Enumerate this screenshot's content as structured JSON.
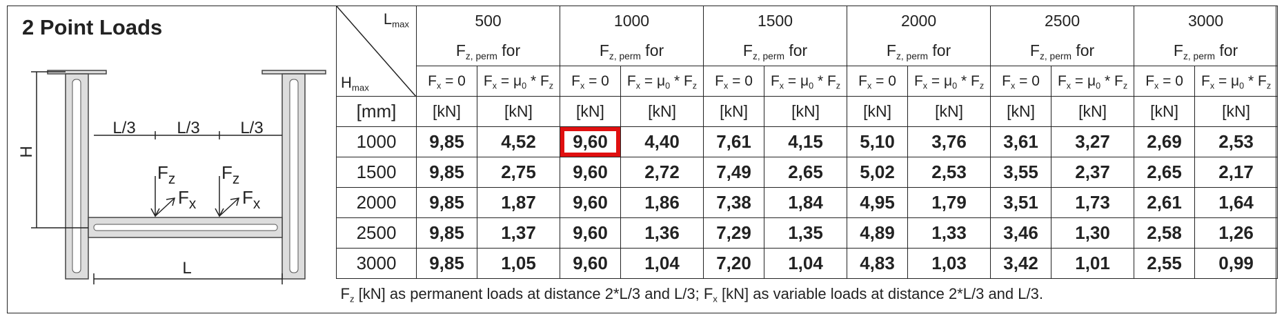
{
  "title": "2 Point Loads",
  "diagram": {
    "thirds": [
      "L/3",
      "L/3",
      "L/3"
    ],
    "height": "H",
    "length": "L",
    "loads": [
      {
        "vertical": [
          "F",
          "z"
        ],
        "horizontal": [
          "F",
          "x"
        ]
      },
      {
        "vertical": [
          "F",
          "z"
        ],
        "horizontal": [
          "F",
          "x"
        ]
      }
    ]
  },
  "table": {
    "corner_top": [
      "L",
      "max"
    ],
    "corner_bottom": [
      "H",
      "max"
    ],
    "unit_label": "[mm]",
    "groups": [
      {
        "length": "500",
        "caption": [
          "F",
          "z, perm",
          " for"
        ],
        "columns": [
          [
            "F",
            "x",
            " = 0"
          ],
          [
            "F",
            "x",
            " = μ",
            "0",
            " * F",
            "z"
          ]
        ],
        "units": [
          "[kN]",
          "[kN]"
        ]
      },
      {
        "length": "1000",
        "caption": [
          "F",
          "z, perm",
          " for"
        ],
        "columns": [
          [
            "F",
            "x",
            " = 0"
          ],
          [
            "F",
            "x",
            " = μ",
            "0",
            " * F",
            "z"
          ]
        ],
        "units": [
          "[kN]",
          "[kN]"
        ]
      },
      {
        "length": "1500",
        "caption": [
          "F",
          "z, perm",
          " for"
        ],
        "columns": [
          [
            "F",
            "x",
            " = 0"
          ],
          [
            "F",
            "x",
            " = μ",
            "0",
            " * F",
            "z"
          ]
        ],
        "units": [
          "[kN]",
          "[kN]"
        ]
      },
      {
        "length": "2000",
        "caption": [
          "F",
          "z, perm",
          " for"
        ],
        "columns": [
          [
            "F",
            "x",
            " = 0"
          ],
          [
            "F",
            "x",
            " = μ",
            "0",
            " * F",
            "z"
          ]
        ],
        "units": [
          "[kN]",
          "[kN]"
        ]
      },
      {
        "length": "2500",
        "caption": [
          "F",
          "z, perm",
          " for"
        ],
        "columns": [
          [
            "F",
            "x",
            " = 0"
          ],
          [
            "F",
            "x",
            " = μ",
            "0",
            " * F",
            "z"
          ]
        ],
        "units": [
          "[kN]",
          "[kN]"
        ]
      },
      {
        "length": "3000",
        "caption": [
          "F",
          "z, perm",
          " for"
        ],
        "columns": [
          [
            "F",
            "x",
            " = 0"
          ],
          [
            "F",
            "x",
            " = μ",
            "0",
            " * F",
            "z"
          ]
        ],
        "units": [
          "[kN]",
          "[kN]"
        ]
      }
    ],
    "rows": [
      {
        "h": "1000",
        "values": [
          "9,85",
          "4,52",
          "9,60",
          "4,40",
          "7,61",
          "4,15",
          "5,10",
          "3,76",
          "3,61",
          "3,27",
          "2,69",
          "2,53"
        ]
      },
      {
        "h": "1500",
        "values": [
          "9,85",
          "2,75",
          "9,60",
          "2,72",
          "7,49",
          "2,65",
          "5,02",
          "2,53",
          "3,55",
          "2,37",
          "2,65",
          "2,17"
        ]
      },
      {
        "h": "2000",
        "values": [
          "9,85",
          "1,87",
          "9,60",
          "1,86",
          "7,38",
          "1,84",
          "4,95",
          "1,79",
          "3,51",
          "1,73",
          "2,61",
          "1,64"
        ]
      },
      {
        "h": "2500",
        "values": [
          "9,85",
          "1,37",
          "9,60",
          "1,36",
          "7,29",
          "1,35",
          "4,89",
          "1,33",
          "3,46",
          "1,30",
          "2,58",
          "1,26"
        ]
      },
      {
        "h": "3000",
        "values": [
          "9,85",
          "1,05",
          "9,60",
          "1,04",
          "7,20",
          "1,04",
          "4,83",
          "1,03",
          "3,42",
          "1,01",
          "2,55",
          "0,99"
        ]
      }
    ],
    "footnote": [
      "F",
      "z",
      " [kN] as permanent loads at distance 2*L/3 and L/3; F",
      "x",
      " [kN] as variable loads at distance 2*L/3 and L/3."
    ]
  }
}
